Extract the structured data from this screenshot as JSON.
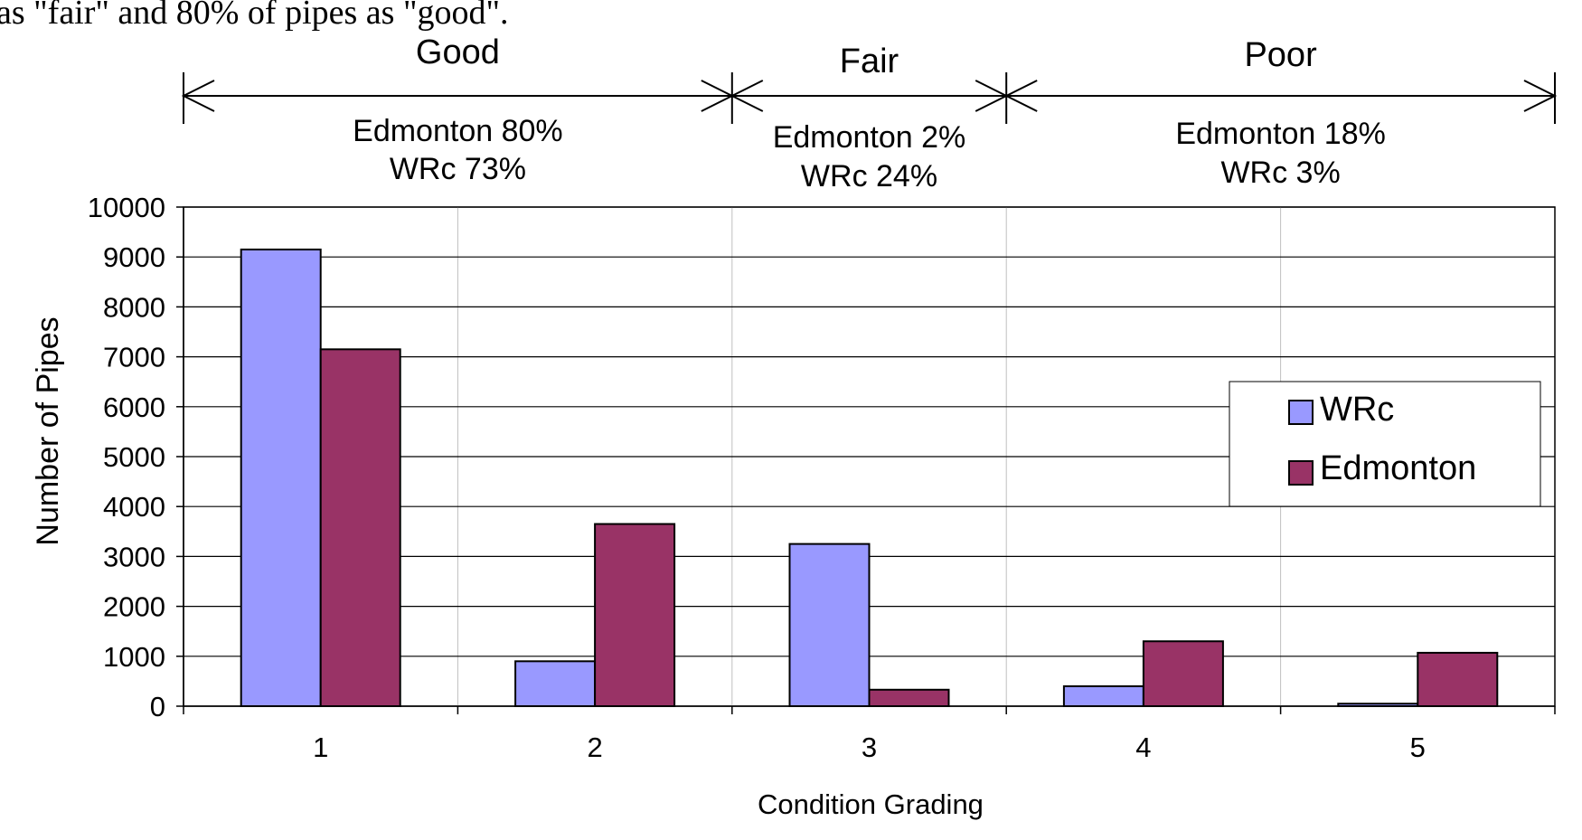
{
  "caption_fragment": "as \"fair\" and 80% of pipes as \"good\".",
  "bands": [
    {
      "label": "Good",
      "line1": "Edmonton 80%",
      "line2": "WRc 73%",
      "from": 0.5,
      "to": 2.5
    },
    {
      "label": "Fair",
      "line1": "Edmonton 2%",
      "line2": "WRc 24%",
      "from": 2.5,
      "to": 3.5
    },
    {
      "label": "Poor",
      "line1": "Edmonton 18%",
      "line2": "WRc 3%",
      "from": 3.5,
      "to": 5.5
    }
  ],
  "colors": {
    "wrc": "#9999ff",
    "edmonton": "#993366"
  },
  "chart_data": {
    "type": "bar",
    "categories": [
      "1",
      "2",
      "3",
      "4",
      "5"
    ],
    "series": [
      {
        "name": "WRc",
        "values": [
          9150,
          900,
          3250,
          400,
          50
        ]
      },
      {
        "name": "Edmonton",
        "values": [
          7150,
          3650,
          330,
          1300,
          1070
        ]
      }
    ],
    "xlabel": "Condition Grading",
    "ylabel": "Number of Pipes",
    "ylim": [
      0,
      10000
    ],
    "yticks": [
      0,
      1000,
      2000,
      3000,
      4000,
      5000,
      6000,
      7000,
      8000,
      9000,
      10000
    ],
    "grid": true,
    "legend": "right"
  }
}
